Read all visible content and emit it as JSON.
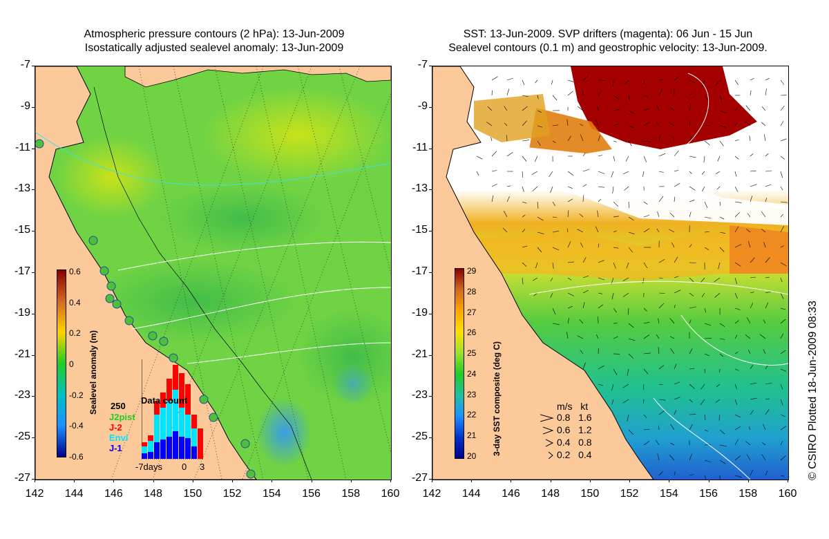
{
  "left_panel": {
    "title_line1": "Atmospheric pressure contours (2 hPa): 13-Jun-2009",
    "title_line2": "Isostatically adjusted sealevel anomaly: 13-Jun-2009",
    "colorbar": {
      "title": "Sealevel anomaly (m)",
      "ticks": [
        "0.6",
        "0.4",
        "0.2",
        "0",
        "-0.2",
        "-0.4",
        "-0.6"
      ]
    },
    "data_count": {
      "title": "Data count",
      "max_label": "250",
      "series": [
        {
          "name": "J2pist",
          "color": "#22cc22"
        },
        {
          "name": "J-2",
          "color": "#ff0000"
        },
        {
          "name": "Envi",
          "color": "#00e5ff"
        },
        {
          "name": "J-1",
          "color": "#0000ff"
        }
      ],
      "x_ticks": [
        "-7days",
        "0",
        "3"
      ]
    }
  },
  "right_panel": {
    "title_line1": "SST: 13-Jun-2009. SVP drifters (magenta): 06 Jun - 15 Jun",
    "title_line2": "Sealevel contours (0.1 m) and geostrophic velocity: 13-Jun-2009.",
    "colorbar": {
      "title": "3-day SST composite (deg C)",
      "ticks": [
        "29",
        "28",
        "27",
        "26",
        "25",
        "24",
        "23",
        "22",
        "21",
        "20"
      ]
    },
    "velocity_legend": {
      "header": "m/s   kt",
      "rows": [
        "0.8   1.6",
        "0.6   1.2",
        "0.4   0.8",
        "0.2   0.4"
      ]
    }
  },
  "axes": {
    "y_ticks": [
      "-7",
      "-9",
      "-11",
      "-13",
      "-15",
      "-17",
      "-19",
      "-21",
      "-23",
      "-25",
      "-27"
    ],
    "x_ticks": [
      "142",
      "144",
      "146",
      "148",
      "150",
      "152",
      "154",
      "156",
      "158",
      "160"
    ]
  },
  "credit": "© CSIRO Plotted 18-Jun-2009 08:33",
  "colors": {
    "land": "#fcc99b",
    "sla_green": "#63d34a",
    "sst_warm": "#a50000",
    "cloud": "#ffffff"
  }
}
